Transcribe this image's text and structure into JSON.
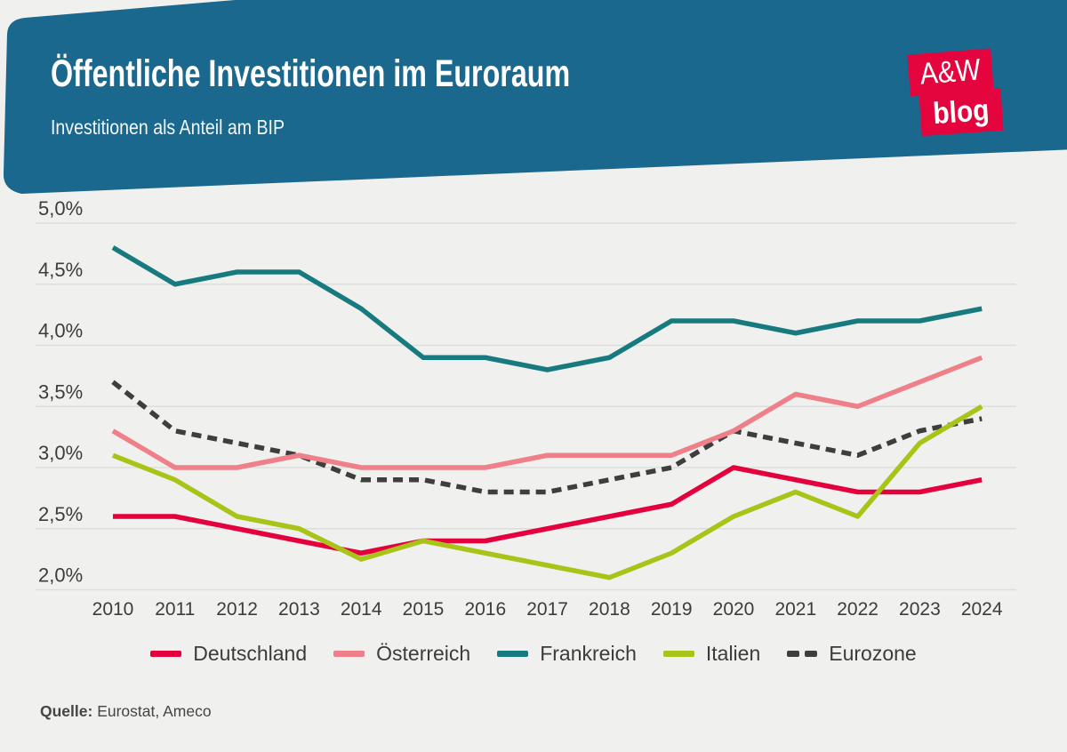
{
  "header": {
    "title": "Öffentliche Investitionen im Euroraum",
    "subtitle": "Investitionen als Anteil am BIP",
    "logo_line1": "A&W",
    "logo_line2": "blog"
  },
  "source": {
    "label": "Quelle:",
    "text": "Eurostat, Ameco"
  },
  "colors": {
    "background": "#f0f0ee",
    "banner_blue": "#1a688e",
    "logo_red": "#e4053f",
    "gridline": "#dddddb",
    "axis_text": "#3c3c3c"
  },
  "chart_data": {
    "type": "line",
    "title": "Öffentliche Investitionen im Euroraum",
    "subtitle": "Investitionen als Anteil am BIP",
    "x": [
      2010,
      2011,
      2012,
      2013,
      2014,
      2015,
      2016,
      2017,
      2018,
      2019,
      2020,
      2021,
      2022,
      2023,
      2024
    ],
    "series": [
      {
        "name": "Deutschland",
        "color": "#e4003c",
        "dash": false,
        "values": [
          2.6,
          2.6,
          2.5,
          2.4,
          2.3,
          2.4,
          2.4,
          2.5,
          2.6,
          2.7,
          3.0,
          2.9,
          2.8,
          2.8,
          2.9
        ]
      },
      {
        "name": "Österreich",
        "color": "#ef7f88",
        "dash": false,
        "values": [
          3.3,
          3.0,
          3.0,
          3.1,
          3.0,
          3.0,
          3.0,
          3.1,
          3.1,
          3.1,
          3.3,
          3.6,
          3.5,
          3.7,
          3.9
        ]
      },
      {
        "name": "Frankreich",
        "color": "#177a7f",
        "dash": false,
        "values": [
          4.8,
          4.5,
          4.6,
          4.6,
          4.3,
          3.9,
          3.9,
          3.8,
          3.9,
          4.2,
          4.2,
          4.1,
          4.2,
          4.2,
          4.3
        ]
      },
      {
        "name": "Italien",
        "color": "#a9c418",
        "dash": false,
        "values": [
          3.1,
          2.9,
          2.6,
          2.5,
          2.25,
          2.4,
          2.3,
          2.2,
          2.1,
          2.3,
          2.6,
          2.8,
          2.6,
          3.2,
          3.5
        ]
      },
      {
        "name": "Eurozone",
        "color": "#3e3e3e",
        "dash": true,
        "values": [
          3.7,
          3.3,
          3.2,
          3.1,
          2.9,
          2.9,
          2.8,
          2.8,
          2.9,
          3.0,
          3.3,
          3.2,
          3.1,
          3.3,
          3.4
        ]
      }
    ],
    "ylim": [
      2.0,
      5.0
    ],
    "yticks": [
      {
        "v": 5.0,
        "label": "5,0%"
      },
      {
        "v": 4.5,
        "label": "4,5%"
      },
      {
        "v": 4.0,
        "label": "4,0%"
      },
      {
        "v": 3.5,
        "label": "3,5%"
      },
      {
        "v": 3.0,
        "label": "3,0%"
      },
      {
        "v": 2.5,
        "label": "2,5%"
      },
      {
        "v": 2.0,
        "label": "2,0%"
      }
    ],
    "xlabel": "",
    "ylabel": "",
    "grid": true,
    "legend_position": "bottom"
  }
}
